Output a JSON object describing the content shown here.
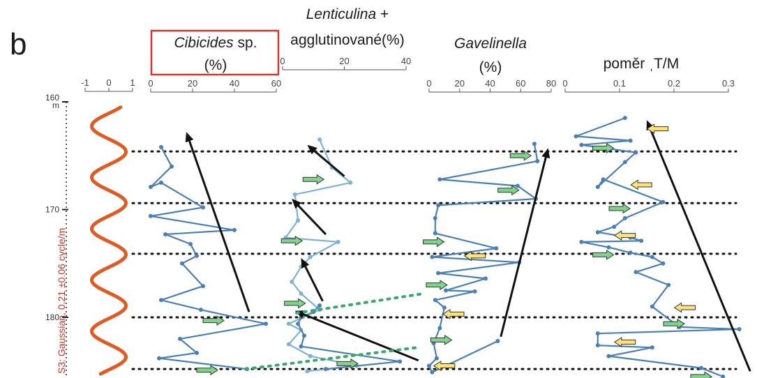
{
  "panel_label": "b",
  "accent_colors": {
    "line_dark": "#4a7fb5",
    "line_light": "#7fb0d6",
    "cycle": "#e05a24",
    "green_arrow": "#7fd38a",
    "yellow_arrow": "#ffe27a",
    "box": "#d0342c"
  },
  "chart_data": {
    "type": "line",
    "depth_axis": {
      "unit": "m",
      "ticks": [
        160,
        170,
        180
      ],
      "range": [
        160,
        185.5
      ],
      "inverted": true
    },
    "cycle_scale": {
      "ticks": [
        "-1",
        "0",
        "1"
      ]
    },
    "cycle_label": "S3: Gaussian, 0.21 ±0.06 cycle/m",
    "cycle_period_m": 4.76,
    "cycle_range": [
      160.5,
      185.3
    ],
    "cycle_boundaries_m": [
      164.6,
      169.4,
      174.1,
      180.0,
      184.8
    ],
    "panels": [
      {
        "id": "cibicides",
        "title_italic": "Cibicides",
        "title_rest": " sp.",
        "title_line2": "(%)",
        "xticks": [
          "0",
          "20",
          "40",
          "60"
        ],
        "xlim": [
          0,
          60
        ],
        "series": [
          {
            "style": "dark",
            "points": [
              [
                5,
                164.2
              ],
              [
                10,
                166.0
              ],
              [
                0,
                167.9
              ],
              [
                5,
                167.5
              ],
              [
                25,
                169.8
              ],
              [
                0,
                170.6
              ],
              [
                40,
                171.9
              ],
              [
                7,
                172.3
              ],
              [
                19,
                173.2
              ],
              [
                22,
                174.3
              ],
              [
                15,
                175.0
              ],
              [
                25,
                177.1
              ],
              [
                5,
                178.4
              ],
              [
                24,
                179.3
              ],
              [
                55,
                180.6
              ],
              [
                14,
                182.0
              ],
              [
                22,
                183.3
              ],
              [
                4,
                183.8
              ],
              [
                46,
                184.8
              ]
            ]
          }
        ],
        "trend_arrows": [
          [
            47,
            179.5,
            17,
            162.8
          ]
        ],
        "green_arrows": [
          [
            30,
            180.3
          ],
          [
            27,
            184.9
          ]
        ],
        "yellow_arrows": []
      },
      {
        "id": "lenticulina",
        "title_italic": "Lenticulina",
        "title_rest": " +",
        "title_line2": "agglutinované(%)",
        "xticks": [
          "0",
          "20",
          "40"
        ],
        "xlim": [
          0,
          40
        ],
        "series": [
          {
            "style": "light",
            "points": [
              [
                12,
                163.5
              ],
              [
                16,
                166.1
              ],
              [
                22,
                167.5
              ],
              [
                4,
                168.6
              ],
              [
                5,
                171.0
              ],
              [
                1,
                172.6
              ],
              [
                18,
                173.0
              ],
              [
                9,
                174.4
              ],
              [
                6,
                175.3
              ],
              [
                3,
                176.7
              ],
              [
                6,
                177.8
              ],
              [
                12,
                179.3
              ],
              [
                2,
                180.6
              ],
              [
                6,
                181.2
              ],
              [
                2,
                182.5
              ],
              [
                9,
                183.6
              ],
              [
                24,
                184.5
              ],
              [
                8,
                185.0
              ]
            ]
          },
          {
            "style": "dark",
            "points": [
              [
                12,
                178.9
              ],
              [
                10,
                179.5
              ],
              [
                6,
                180.0
              ],
              [
                5,
                180.6
              ],
              [
                7,
                181.7
              ],
              [
                6,
                182.7
              ],
              [
                38,
                184.1
              ],
              [
                14,
                184.8
              ]
            ]
          }
        ],
        "trend_arrows": [
          [
            20,
            166.9,
            8,
            164.0
          ],
          [
            14,
            172.3,
            3,
            169.0
          ],
          [
            13,
            178.5,
            6,
            174.5
          ],
          [
            44,
            184.0,
            4,
            179.4
          ]
        ],
        "green_arrows": [
          [
            10,
            167.2
          ],
          [
            3,
            172.9
          ],
          [
            4,
            178.7
          ],
          [
            21,
            184.3
          ]
        ],
        "yellow_arrows": []
      },
      {
        "id": "gavelinella",
        "title_italic": "Gavelinella",
        "title_rest": "",
        "title_line2": "(%)",
        "xticks": [
          "0",
          "20",
          "40",
          "60",
          "80"
        ],
        "xlim": [
          0,
          80
        ],
        "series": [
          {
            "style": "dark",
            "points": [
              [
                69,
                163.9
              ],
              [
                71,
                165.5
              ],
              [
                7,
                167.2
              ],
              [
                58,
                167.8
              ],
              [
                70,
                169.0
              ],
              [
                6,
                169.6
              ],
              [
                4,
                170.8
              ],
              [
                4,
                172.2
              ],
              [
                44,
                173.6
              ],
              [
                2,
                174.4
              ],
              [
                59,
                174.9
              ],
              [
                6,
                175.9
              ],
              [
                37,
                176.4
              ],
              [
                11,
                177.5
              ],
              [
                30,
                177.6
              ],
              [
                4,
                178.4
              ],
              [
                10,
                179.1
              ],
              [
                7,
                181.0
              ],
              [
                3,
                182.4
              ],
              [
                5,
                183.8
              ],
              [
                0,
                184.5
              ],
              [
                2,
                185.1
              ],
              [
                45,
                182.2
              ]
            ]
          }
        ],
        "trend_arrows": [
          [
            47,
            181.8,
            78,
            164.3
          ]
        ],
        "green_arrows": [
          [
            60,
            165.0
          ],
          [
            52,
            168.2
          ],
          [
            3,
            173.0
          ],
          [
            5,
            177.0
          ],
          [
            8,
            182.1
          ]
        ],
        "yellow_arrows": [
          [
            30,
            174.3
          ],
          [
            16,
            179.7
          ],
          [
            10,
            184.5
          ]
        ]
      },
      {
        "id": "tm",
        "title_italic": "",
        "title_rest": "poměr ˌT/M",
        "title_line2": "",
        "xticks": [
          "0",
          "0.1",
          "0.2",
          "0.3"
        ],
        "xlim": [
          0,
          0.3
        ],
        "series": [
          {
            "style": "dark",
            "points": [
              [
                0.11,
                161.5
              ],
              [
                0.02,
                163.2
              ],
              [
                0.12,
                163.6
              ],
              [
                0.03,
                164.0
              ],
              [
                0.13,
                164.7
              ],
              [
                0.11,
                165.6
              ],
              [
                0.06,
                167.9
              ],
              [
                0.07,
                167.2
              ],
              [
                0.18,
                169.3
              ],
              [
                0.11,
                170.8
              ],
              [
                0.09,
                171.6
              ],
              [
                0.06,
                172.1
              ],
              [
                0.12,
                172.6
              ],
              [
                0.14,
                172.9
              ],
              [
                0.03,
                173.0
              ],
              [
                0.08,
                173.5
              ],
              [
                0.12,
                174.0
              ],
              [
                0.16,
                174.4
              ],
              [
                0.18,
                175.0
              ],
              [
                0.13,
                175.8
              ],
              [
                0.19,
                177.0
              ],
              [
                0.16,
                179.0
              ],
              [
                0.21,
                180.9
              ],
              [
                0.32,
                181.1
              ],
              [
                0.06,
                181.5
              ],
              [
                0.06,
                182.6
              ],
              [
                0.16,
                182.8
              ],
              [
                0.08,
                183.6
              ],
              [
                0.25,
                184.7
              ],
              [
                0.29,
                185.5
              ]
            ]
          }
        ],
        "trend_arrows": [
          [
            0.34,
            185.0,
            0.15,
            161.7
          ]
        ],
        "green_arrows": [
          [
            0.07,
            164.3
          ],
          [
            0.1,
            169.9
          ],
          [
            0.07,
            174.2
          ],
          [
            0.2,
            180.6
          ],
          [
            0.25,
            185.5
          ]
        ],
        "yellow_arrows": [
          [
            0.17,
            162.5
          ],
          [
            0.14,
            167.7
          ],
          [
            0.11,
            172.4
          ],
          [
            0.22,
            179.1
          ],
          [
            0.11,
            182.3
          ]
        ]
      }
    ]
  }
}
